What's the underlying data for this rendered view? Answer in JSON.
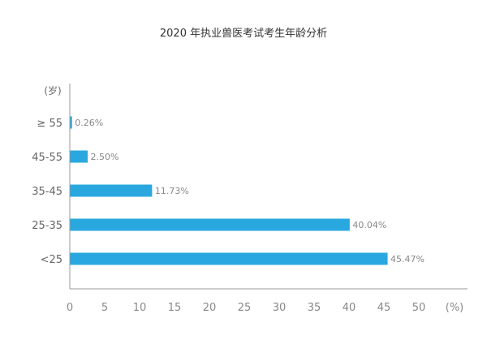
{
  "chart_data": {
    "type": "bar",
    "orientation": "horizontal",
    "title": "2020 年执业兽医考试考生年龄分析",
    "ylabel": "(岁)",
    "xlabel": "(%)",
    "categories": [
      "≥ 55",
      "45-55",
      "35-45",
      "25-35",
      "<25"
    ],
    "values": [
      0.26,
      2.5,
      11.73,
      40.04,
      45.47
    ],
    "data_labels": [
      "0.26%",
      "2.50%",
      "11.73%",
      "40.04%",
      "45.47%"
    ],
    "xlim": [
      0,
      50
    ],
    "xticks": [
      "0",
      "5",
      "10",
      "15",
      "20",
      "25",
      "30",
      "35",
      "40",
      "45",
      "50"
    ],
    "bar_color": "#29a8e0",
    "axis_color": "#999999",
    "grid": false
  }
}
